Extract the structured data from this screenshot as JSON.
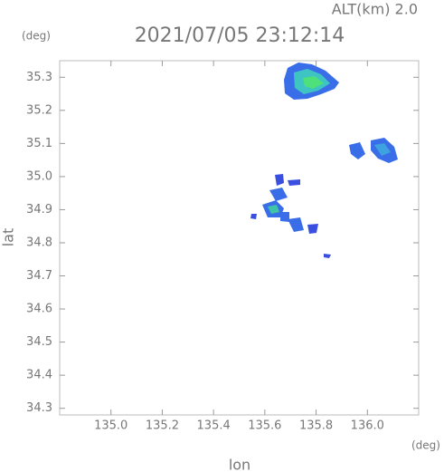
{
  "chart_data": {
    "type": "scatter",
    "title": "2021/07/05 23:12:14",
    "subtitle": "ALT(km) 2.0",
    "xlabel": "lon",
    "ylabel": "lat",
    "xunit": "(deg)",
    "yunit": "(deg)",
    "xlim": [
      134.8,
      136.2
    ],
    "ylim": [
      34.28,
      35.35
    ],
    "xticks": [
      {
        "value": 135,
        "label": "135.0"
      },
      135.2,
      135.4,
      135.6,
      135.8,
      {
        "value": 136,
        "label": "136.0"
      }
    ],
    "yticks": [
      34.3,
      34.4,
      34.5,
      34.6,
      34.7,
      34.8,
      34.9,
      {
        "value": 35,
        "label": "35.0"
      },
      35.1,
      35.2,
      35.3
    ]
  }
}
